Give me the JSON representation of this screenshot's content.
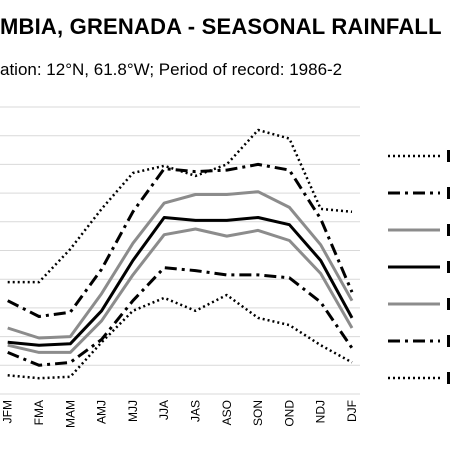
{
  "chart_data": {
    "type": "line",
    "title": "MBIA, GRENADA - SEASONAL RAINFALL",
    "subtitle": "ation: 12°N, 61.8°W; Period of record: 1986-2",
    "categories": [
      "JFM",
      "FMA",
      "MAM",
      "AMJ",
      "MJJ",
      "JJA",
      "JAS",
      "ASO",
      "SON",
      "OND",
      "NDJ",
      "DJF"
    ],
    "grid": true,
    "legend": "right",
    "series": [
      {
        "style": "dotted",
        "color": "#000000",
        "values": [
          7.8,
          7.8,
          10.1,
          12.9,
          15.4,
          15.9,
          15.2,
          16.0,
          18.4,
          17.8,
          12.9,
          12.7
        ]
      },
      {
        "style": "dash-dot",
        "color": "#000000",
        "values": [
          6.5,
          5.4,
          5.7,
          8.7,
          12.7,
          15.7,
          15.5,
          15.6,
          16.0,
          15.6,
          12.2,
          7.1
        ]
      },
      {
        "style": "solid",
        "color": "#8c8c8c",
        "values": [
          4.6,
          3.9,
          4.0,
          7.0,
          10.5,
          13.3,
          13.9,
          13.9,
          14.1,
          13.0,
          10.4,
          6.5
        ]
      },
      {
        "style": "solid",
        "color": "#000000",
        "values": [
          3.6,
          3.4,
          3.5,
          5.8,
          9.3,
          12.3,
          12.1,
          12.1,
          12.3,
          11.8,
          9.3,
          5.3
        ]
      },
      {
        "style": "solid",
        "color": "#8c8c8c",
        "values": [
          3.4,
          2.9,
          2.9,
          5.1,
          8.3,
          11.1,
          11.5,
          11.0,
          11.4,
          10.7,
          8.4,
          4.6
        ]
      },
      {
        "style": "dash-dot",
        "color": "#000000",
        "values": [
          2.9,
          2.0,
          2.2,
          3.8,
          6.5,
          8.8,
          8.6,
          8.3,
          8.3,
          8.1,
          6.4,
          3.2
        ]
      },
      {
        "style": "dotted",
        "color": "#000000",
        "values": [
          1.3,
          1.1,
          1.2,
          3.6,
          5.8,
          6.7,
          5.8,
          6.9,
          5.3,
          4.8,
          3.4,
          2.2
        ]
      }
    ],
    "ylim": [
      0,
      20
    ]
  }
}
